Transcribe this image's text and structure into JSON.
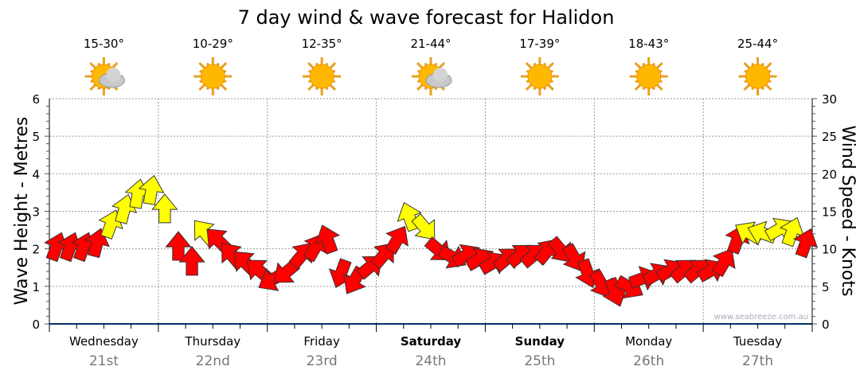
{
  "chart_data": {
    "type": "scatter",
    "title": "7 day wind & wave forecast for Halidon",
    "ylabel_left": "Wave Height - Metres",
    "ylabel_right": "Wind Speed - Knots",
    "ylim_left": [
      0,
      6
    ],
    "ylim_right": [
      0,
      30
    ],
    "yticks_left": [
      "0",
      "1",
      "2",
      "3",
      "4",
      "5",
      "6"
    ],
    "yticks_right": [
      "0",
      "5",
      "10",
      "15",
      "20",
      "25",
      "30"
    ],
    "grid": true,
    "watermark": "www.seabreeze.com.au",
    "colors": {
      "low": "#ff0000",
      "high": "#ffff00",
      "axis": "#003366"
    },
    "days": [
      {
        "name": "Wednesday",
        "date": "21st",
        "temp": "15-30°",
        "icon": "partly-cloudy",
        "bold": false
      },
      {
        "name": "Thursday",
        "date": "22nd",
        "temp": "10-29°",
        "icon": "sunny",
        "bold": false
      },
      {
        "name": "Friday",
        "date": "23rd",
        "temp": "12-35°",
        "icon": "sunny",
        "bold": false
      },
      {
        "name": "Saturday",
        "date": "24th",
        "temp": "21-44°",
        "icon": "partly-cloudy",
        "bold": true
      },
      {
        "name": "Sunday",
        "date": "25th",
        "temp": "17-39°",
        "icon": "sunny",
        "bold": true
      },
      {
        "name": "Monday",
        "date": "26th",
        "temp": "18-43°",
        "icon": "sunny",
        "bold": false
      },
      {
        "name": "Tuesday",
        "date": "27th",
        "temp": "25-44°",
        "icon": "sunny",
        "bold": false
      }
    ],
    "series": [
      {
        "name": "wind",
        "hour": [
          0,
          3,
          6,
          9,
          12,
          15,
          18,
          21,
          24,
          27,
          30,
          33,
          36,
          39,
          42,
          45,
          48,
          51,
          54,
          57,
          60,
          63,
          66,
          69,
          72,
          75,
          78,
          81,
          84,
          87,
          90,
          93,
          96,
          99,
          102,
          105,
          108,
          111,
          114,
          117,
          120,
          123,
          126,
          129,
          132,
          135,
          138,
          141,
          144,
          147,
          150,
          153,
          156,
          159,
          162,
          165
        ],
        "knots": [
          10,
          10,
          10,
          10.5,
          13,
          15,
          17,
          17.5,
          15,
          10,
          8,
          12,
          11,
          9,
          8,
          7,
          6,
          7,
          9,
          10,
          11,
          7,
          6,
          7.5,
          9,
          11,
          14,
          13,
          10,
          9,
          9,
          8.5,
          8,
          8.5,
          9,
          9,
          9.5,
          10,
          9,
          7,
          5.5,
          4.5,
          5,
          6,
          6.5,
          7,
          7,
          7,
          7,
          8,
          11,
          12,
          12,
          12.5,
          12,
          10.5
        ],
        "direction_deg": [
          20,
          20,
          20,
          15,
          20,
          15,
          10,
          10,
          0,
          0,
          0,
          -40,
          -45,
          -40,
          -45,
          -50,
          -120,
          -130,
          40,
          30,
          -20,
          200,
          210,
          50,
          40,
          30,
          -20,
          140,
          130,
          120,
          60,
          60,
          60,
          50,
          50,
          50,
          40,
          140,
          150,
          160,
          150,
          160,
          120,
          70,
          60,
          60,
          50,
          50,
          60,
          30,
          20,
          -60,
          -70,
          60,
          20,
          20
        ]
      }
    ]
  }
}
